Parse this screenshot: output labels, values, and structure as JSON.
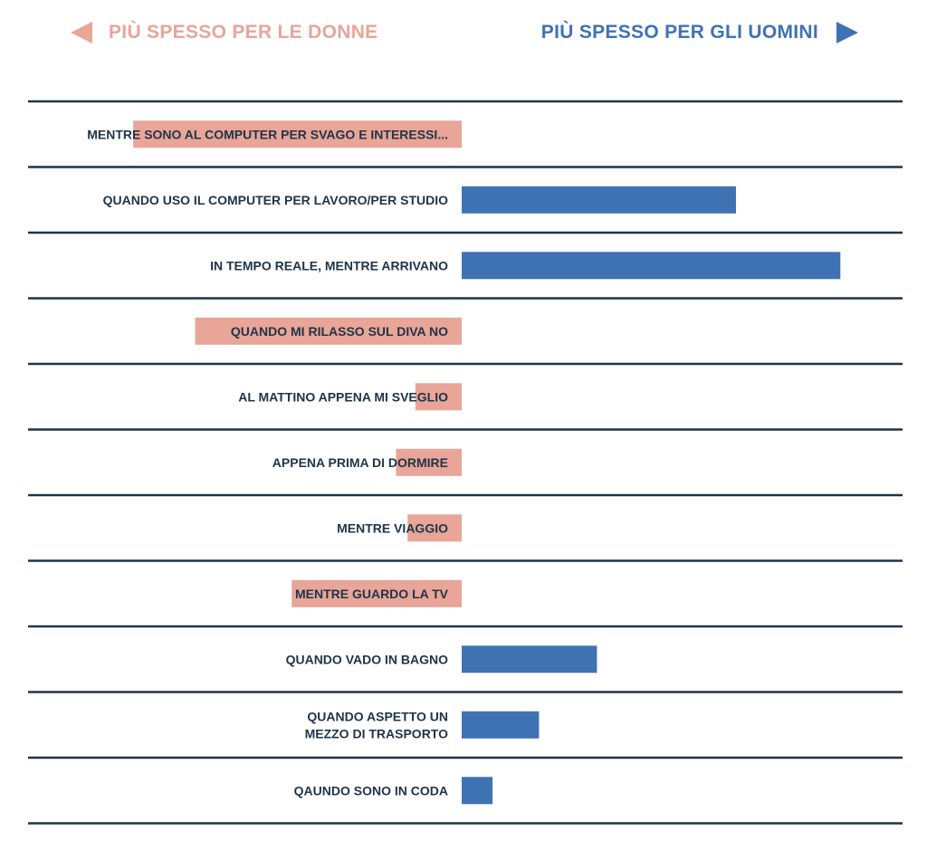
{
  "colors": {
    "women": "#e8a598",
    "men": "#3f72b3",
    "divider": "#1f3448",
    "label": "#1f3448"
  },
  "legend": {
    "women_label": "PIÙ SPESSO PER LE DONNE",
    "men_label": "PIÙ SPESSO PER GLI UOMINI"
  },
  "chart_data": {
    "type": "bar",
    "orientation": "horizontal-diverging",
    "grid": false,
    "categories": [
      "MENTRE SONO AL COMPUTER PER SVAGO E INTERESSI...",
      "QUANDO USO IL COMPUTER PER LAVORO/PER STUDIO",
      "IN TEMPO REALE, MENTRE ARRIVANO",
      "QUANDO MI RILASSO SUL DIVA NO",
      "AL MATTINO APPENA MI SVEGLIO",
      "APPENA PRIMA DI DORMIRE",
      "MENTRE VIAGGIO",
      "MENTRE GUARDO LA TV",
      "QUANDO VADO IN BAGNO",
      "QUANDO ASPETTO UN MEZZO DI TRASPORTO",
      "QAUNDO SONO IN CODA"
    ],
    "label_lines": [
      [
        "MENTRE SONO AL COMPUTER PER SVAGO E INTERESSI..."
      ],
      [
        "QUANDO USO IL COMPUTER PER LAVORO/PER STUDIO"
      ],
      [
        "IN TEMPO REALE, MENTRE ARRIVANO"
      ],
      [
        "QUANDO MI RILASSO SUL DIVA NO"
      ],
      [
        "AL MATTINO APPENA MI SVEGLIO"
      ],
      [
        "APPENA PRIMA DI DORMIRE"
      ],
      [
        "MENTRE VIAGGIO"
      ],
      [
        "MENTRE GUARDO LA TV"
      ],
      [
        "QUANDO VADO IN BAGNO"
      ],
      [
        "QUANDO ASPETTO UN",
        "MEZZO DI TRASPORTO"
      ],
      [
        "QAUNDO SONO IN CODA"
      ]
    ],
    "values": [
      -8.5,
      7.1,
      9.8,
      -6.9,
      -1.2,
      -1.7,
      -1.4,
      -4.4,
      3.5,
      2.0,
      0.8
    ],
    "xlim": [
      -11.2,
      11.2
    ]
  }
}
